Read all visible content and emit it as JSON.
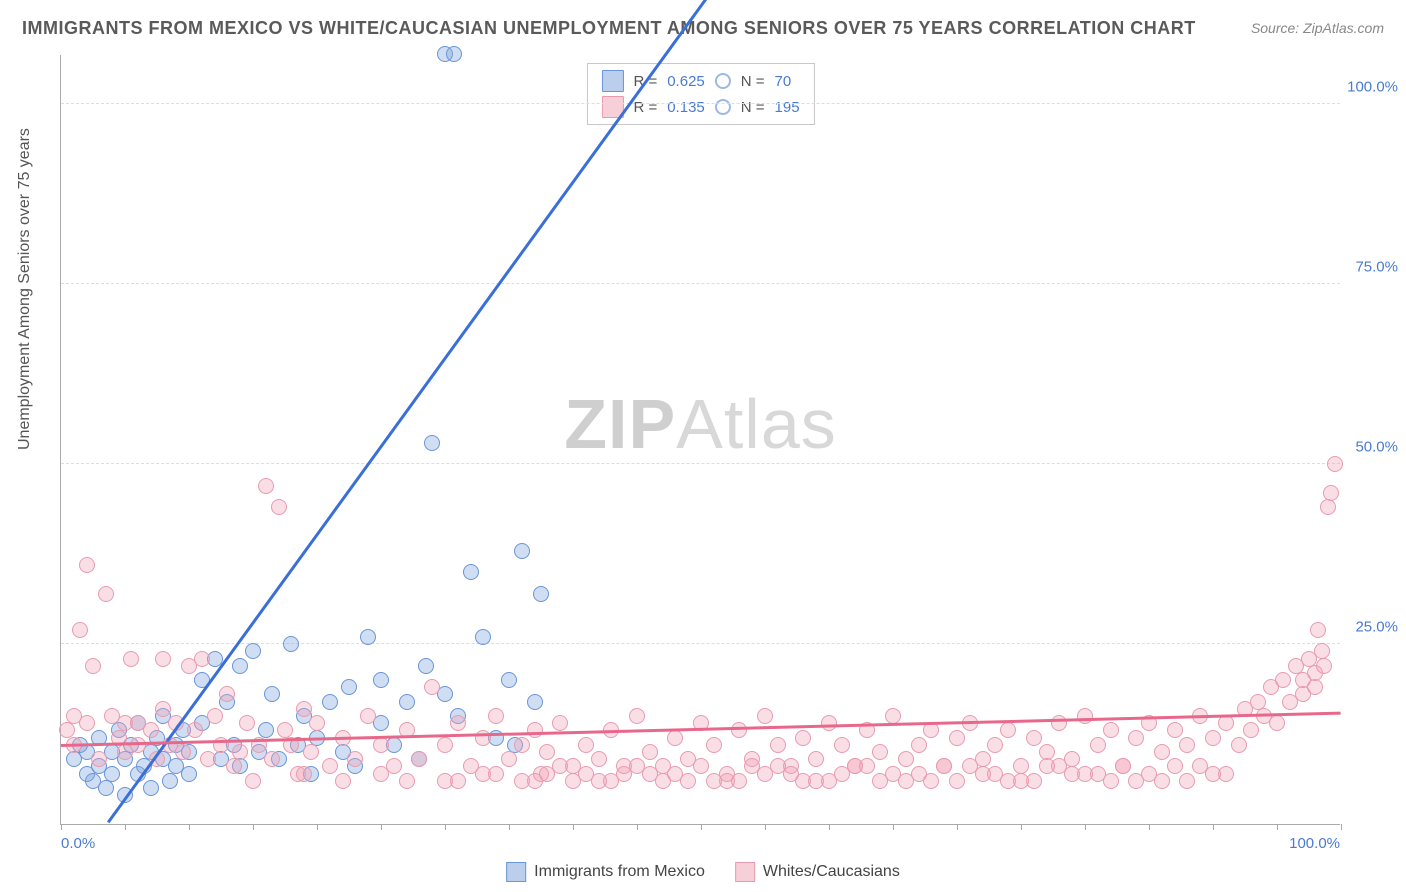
{
  "title": "IMMIGRANTS FROM MEXICO VS WHITE/CAUCASIAN UNEMPLOYMENT AMONG SENIORS OVER 75 YEARS CORRELATION CHART",
  "source_prefix": "Source: ",
  "source": "ZipAtlas.com",
  "ylabel": "Unemployment Among Seniors over 75 years",
  "watermark_a": "ZIP",
  "watermark_b": "Atlas",
  "chart": {
    "type": "scatter",
    "xlim": [
      0,
      100
    ],
    "ylim": [
      0,
      107
    ],
    "x_tick_labels": {
      "left": "0.0%",
      "right": "100.0%"
    },
    "y_ticks": [
      {
        "v": 25,
        "label": "25.0%"
      },
      {
        "v": 50,
        "label": "50.0%"
      },
      {
        "v": 75,
        "label": "75.0%"
      },
      {
        "v": 100,
        "label": "100.0%"
      }
    ],
    "x_minor_tick_count": 20,
    "background_color": "#ffffff",
    "grid_color": "#dddddd",
    "axis_color": "#aaaaaa",
    "tick_label_color": "#4a7bd0",
    "point_radius": 8,
    "series": [
      {
        "id": "s1",
        "name": "Immigrants from Mexico",
        "color_fill": "rgba(120,160,220,0.35)",
        "color_stroke": "#6a95d8",
        "R": "0.625",
        "N": "70",
        "trend": {
          "slope": 2.45,
          "intercept": -9,
          "x0": 3.7,
          "x1_solid": 60,
          "x1_dash": 79,
          "color": "#3a6fd8"
        },
        "points": [
          [
            1,
            9
          ],
          [
            1.5,
            11
          ],
          [
            2,
            7
          ],
          [
            2,
            10
          ],
          [
            2.5,
            6
          ],
          [
            3,
            12
          ],
          [
            3,
            8
          ],
          [
            3.5,
            5
          ],
          [
            4,
            10
          ],
          [
            4,
            7
          ],
          [
            4.5,
            13
          ],
          [
            5,
            9
          ],
          [
            5,
            4
          ],
          [
            5.5,
            11
          ],
          [
            6,
            7
          ],
          [
            6,
            14
          ],
          [
            6.5,
            8
          ],
          [
            7,
            10
          ],
          [
            7,
            5
          ],
          [
            7.5,
            12
          ],
          [
            8,
            15
          ],
          [
            8,
            9
          ],
          [
            8.5,
            6
          ],
          [
            9,
            11
          ],
          [
            9,
            8
          ],
          [
            9.5,
            13
          ],
          [
            10,
            10
          ],
          [
            10,
            7
          ],
          [
            11,
            14
          ],
          [
            11,
            20
          ],
          [
            12,
            23
          ],
          [
            12.5,
            9
          ],
          [
            13,
            17
          ],
          [
            13.5,
            11
          ],
          [
            14,
            22
          ],
          [
            14,
            8
          ],
          [
            15,
            24
          ],
          [
            15.5,
            10
          ],
          [
            16,
            13
          ],
          [
            16.5,
            18
          ],
          [
            17,
            9
          ],
          [
            18,
            25
          ],
          [
            18.5,
            11
          ],
          [
            19,
            15
          ],
          [
            19.5,
            7
          ],
          [
            20,
            12
          ],
          [
            21,
            17
          ],
          [
            22,
            10
          ],
          [
            22.5,
            19
          ],
          [
            23,
            8
          ],
          [
            24,
            26
          ],
          [
            25,
            14
          ],
          [
            25,
            20
          ],
          [
            26,
            11
          ],
          [
            27,
            17
          ],
          [
            28,
            9
          ],
          [
            28.5,
            22
          ],
          [
            29,
            53
          ],
          [
            30,
            18
          ],
          [
            30,
            107
          ],
          [
            30.7,
            107
          ],
          [
            31,
            15
          ],
          [
            32,
            35
          ],
          [
            33,
            26
          ],
          [
            34,
            12
          ],
          [
            35,
            20
          ],
          [
            35.5,
            11
          ],
          [
            36,
            38
          ],
          [
            37,
            17
          ],
          [
            37.5,
            32
          ]
        ]
      },
      {
        "id": "s2",
        "name": "Whites/Caucasians",
        "color_fill": "rgba(240,160,180,0.35)",
        "color_stroke": "#e89bb0",
        "R": "0.135",
        "N": "195",
        "trend": {
          "slope": 0.045,
          "intercept": 10.8,
          "x0": 0,
          "x1_solid": 100,
          "color": "#e8688c"
        },
        "points": [
          [
            0.5,
            13
          ],
          [
            1,
            15
          ],
          [
            1,
            11
          ],
          [
            1.5,
            27
          ],
          [
            2,
            36
          ],
          [
            2,
            14
          ],
          [
            2.5,
            22
          ],
          [
            3,
            9
          ],
          [
            3.5,
            32
          ],
          [
            4,
            15
          ],
          [
            4.5,
            12
          ],
          [
            5,
            10
          ],
          [
            5,
            14
          ],
          [
            5.5,
            23
          ],
          [
            6,
            11
          ],
          [
            6,
            14
          ],
          [
            7,
            13
          ],
          [
            7.5,
            9
          ],
          [
            8,
            16
          ],
          [
            8,
            23
          ],
          [
            8.5,
            11
          ],
          [
            9,
            14
          ],
          [
            9.5,
            10
          ],
          [
            10,
            22
          ],
          [
            10.5,
            13
          ],
          [
            11,
            23
          ],
          [
            11.5,
            9
          ],
          [
            12,
            15
          ],
          [
            12.5,
            11
          ],
          [
            13,
            18
          ],
          [
            13.5,
            8
          ],
          [
            14,
            10
          ],
          [
            14.5,
            14
          ],
          [
            15,
            6
          ],
          [
            15.5,
            11
          ],
          [
            16,
            47
          ],
          [
            16.5,
            9
          ],
          [
            17,
            44
          ],
          [
            17.5,
            13
          ],
          [
            18,
            11
          ],
          [
            18.5,
            7
          ],
          [
            19,
            16
          ],
          [
            19.5,
            10
          ],
          [
            20,
            14
          ],
          [
            21,
            8
          ],
          [
            22,
            12
          ],
          [
            23,
            9
          ],
          [
            24,
            15
          ],
          [
            25,
            11
          ],
          [
            26,
            8
          ],
          [
            27,
            13
          ],
          [
            28,
            9
          ],
          [
            29,
            19
          ],
          [
            30,
            11
          ],
          [
            31,
            14
          ],
          [
            32,
            8
          ],
          [
            33,
            12
          ],
          [
            34,
            15
          ],
          [
            35,
            9
          ],
          [
            36,
            11
          ],
          [
            37,
            13
          ],
          [
            37.5,
            7
          ],
          [
            38,
            10
          ],
          [
            39,
            14
          ],
          [
            40,
            8
          ],
          [
            41,
            11
          ],
          [
            42,
            9
          ],
          [
            43,
            13
          ],
          [
            44,
            7
          ],
          [
            45,
            15
          ],
          [
            46,
            10
          ],
          [
            47,
            8
          ],
          [
            48,
            12
          ],
          [
            49,
            9
          ],
          [
            50,
            14
          ],
          [
            51,
            11
          ],
          [
            52,
            7
          ],
          [
            53,
            13
          ],
          [
            54,
            9
          ],
          [
            55,
            15
          ],
          [
            56,
            11
          ],
          [
            57,
            8
          ],
          [
            58,
            12
          ],
          [
            59,
            9
          ],
          [
            60,
            14
          ],
          [
            61,
            11
          ],
          [
            62,
            8
          ],
          [
            63,
            13
          ],
          [
            64,
            10
          ],
          [
            65,
            15
          ],
          [
            66,
            9
          ],
          [
            67,
            11
          ],
          [
            68,
            13
          ],
          [
            69,
            8
          ],
          [
            70,
            12
          ],
          [
            71,
            14
          ],
          [
            72,
            9
          ],
          [
            73,
            11
          ],
          [
            74,
            13
          ],
          [
            75,
            8
          ],
          [
            76,
            12
          ],
          [
            77,
            10
          ],
          [
            78,
            14
          ],
          [
            79,
            9
          ],
          [
            80,
            15
          ],
          [
            81,
            11
          ],
          [
            82,
            13
          ],
          [
            83,
            8
          ],
          [
            84,
            12
          ],
          [
            85,
            14
          ],
          [
            86,
            10
          ],
          [
            87,
            13
          ],
          [
            88,
            11
          ],
          [
            89,
            15
          ],
          [
            90,
            12
          ],
          [
            91,
            14
          ],
          [
            92,
            11
          ],
          [
            92.5,
            16
          ],
          [
            93,
            13
          ],
          [
            93.5,
            17
          ],
          [
            94,
            15
          ],
          [
            94.5,
            19
          ],
          [
            95,
            14
          ],
          [
            95.5,
            20
          ],
          [
            96,
            17
          ],
          [
            96.5,
            22
          ],
          [
            97,
            18
          ],
          [
            97,
            20
          ],
          [
            97.5,
            23
          ],
          [
            98,
            19
          ],
          [
            98,
            21
          ],
          [
            98.2,
            27
          ],
          [
            98.5,
            24
          ],
          [
            98.7,
            22
          ],
          [
            99,
            44
          ],
          [
            99.2,
            46
          ],
          [
            99.5,
            50
          ],
          [
            30,
            6
          ],
          [
            33,
            7
          ],
          [
            36,
            6
          ],
          [
            38,
            7
          ],
          [
            40,
            6
          ],
          [
            43,
            6
          ],
          [
            46,
            7
          ],
          [
            49,
            6
          ],
          [
            52,
            6
          ],
          [
            55,
            7
          ],
          [
            58,
            6
          ],
          [
            61,
            7
          ],
          [
            64,
            6
          ],
          [
            67,
            7
          ],
          [
            70,
            6
          ],
          [
            73,
            7
          ],
          [
            76,
            6
          ],
          [
            79,
            7
          ],
          [
            82,
            6
          ],
          [
            85,
            7
          ],
          [
            88,
            6
          ],
          [
            22,
            6
          ],
          [
            25,
            7
          ],
          [
            27,
            6
          ],
          [
            19,
            7
          ],
          [
            41,
            7
          ],
          [
            44,
            8
          ],
          [
            47,
            6
          ],
          [
            50,
            8
          ],
          [
            53,
            6
          ],
          [
            56,
            8
          ],
          [
            59,
            6
          ],
          [
            62,
            8
          ],
          [
            65,
            7
          ],
          [
            68,
            6
          ],
          [
            71,
            8
          ],
          [
            74,
            6
          ],
          [
            77,
            8
          ],
          [
            80,
            7
          ],
          [
            83,
            8
          ],
          [
            86,
            6
          ],
          [
            89,
            8
          ],
          [
            91,
            7
          ],
          [
            31,
            6
          ],
          [
            34,
            7
          ],
          [
            37,
            6
          ],
          [
            39,
            8
          ],
          [
            42,
            6
          ],
          [
            45,
            8
          ],
          [
            48,
            7
          ],
          [
            51,
            6
          ],
          [
            54,
            8
          ],
          [
            57,
            7
          ],
          [
            60,
            6
          ],
          [
            63,
            8
          ],
          [
            66,
            6
          ],
          [
            69,
            8
          ],
          [
            72,
            7
          ],
          [
            75,
            6
          ],
          [
            78,
            8
          ],
          [
            81,
            7
          ],
          [
            84,
            6
          ],
          [
            87,
            8
          ],
          [
            90,
            7
          ]
        ]
      }
    ]
  },
  "bottom_legend": [
    {
      "swatch": "blue",
      "label": "Immigrants from Mexico"
    },
    {
      "swatch": "pink",
      "label": "Whites/Caucasians"
    }
  ]
}
